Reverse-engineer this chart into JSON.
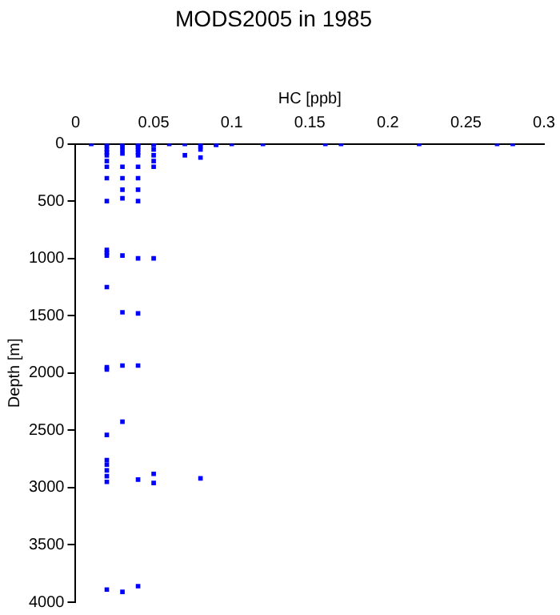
{
  "chart_data": {
    "type": "scatter",
    "title": "MODS2005 in 1985",
    "xlabel": "HC [ppb]",
    "ylabel": "Depth [m]",
    "x": [
      0.01,
      0.02,
      0.03,
      0.04,
      0.05,
      0.06,
      0.07,
      0.08,
      0.09,
      0.1,
      0.12,
      0.16,
      0.17,
      0.22,
      0.27,
      0.28,
      0.02,
      0.02,
      0.02,
      0.02,
      0.02,
      0.02,
      0.02,
      0.02,
      0.02,
      0.02,
      0.02,
      0.02,
      0.02,
      0.02,
      0.02,
      0.02,
      0.02,
      0.02,
      0.02,
      0.02,
      0.02,
      0.03,
      0.03,
      0.03,
      0.03,
      0.03,
      0.03,
      0.03,
      0.03,
      0.03,
      0.03,
      0.03,
      0.03,
      0.04,
      0.04,
      0.04,
      0.04,
      0.04,
      0.04,
      0.04,
      0.04,
      0.04,
      0.04,
      0.04,
      0.04,
      0.04,
      0.04,
      0.05,
      0.05,
      0.05,
      0.05,
      0.05,
      0.05,
      0.05,
      0.05,
      0.07,
      0.08,
      0.08,
      0.08,
      0.08,
      0.09
    ],
    "values": [
      0,
      0,
      0,
      0,
      0,
      0,
      0,
      0,
      0,
      0,
      0,
      0,
      0,
      0,
      0,
      0,
      20,
      50,
      75,
      100,
      150,
      200,
      300,
      500,
      925,
      950,
      975,
      1250,
      1950,
      1970,
      2540,
      2760,
      2800,
      2850,
      2900,
      2950,
      3890,
      20,
      50,
      85,
      200,
      300,
      400,
      475,
      975,
      1470,
      1935,
      2425,
      3910,
      10,
      30,
      50,
      75,
      100,
      200,
      300,
      400,
      500,
      1000,
      1480,
      1935,
      2930,
      3860,
      10,
      50,
      100,
      150,
      200,
      1000,
      2880,
      2960,
      100,
      20,
      50,
      120,
      2920,
      10
    ],
    "color": "#0000ff",
    "marker": "square",
    "xlim": [
      0,
      0.3
    ],
    "xticks": [
      0,
      0.05,
      0.1,
      0.15,
      0.2,
      0.25,
      0.3
    ],
    "ylim": [
      4000,
      0
    ],
    "yticks": [
      0,
      500,
      1000,
      1500,
      2000,
      2500,
      3000,
      3500,
      4000
    ],
    "grid": false,
    "legend": false
  }
}
